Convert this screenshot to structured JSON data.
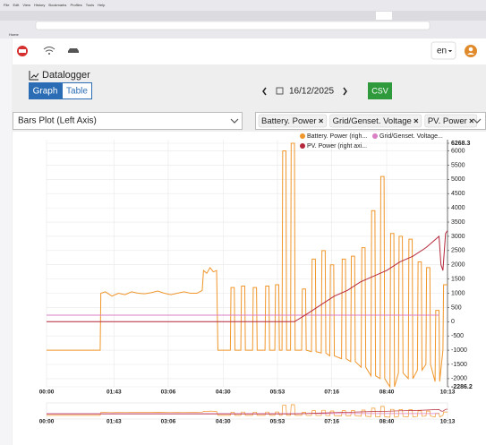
{
  "browser": {
    "menu": [
      "File",
      "Edit",
      "View",
      "History",
      "Bookmarks",
      "Profiles",
      "Tools",
      "Help"
    ],
    "bookmark": "Home"
  },
  "app": {
    "language": "en",
    "page_title": "Datalogger",
    "tabs": [
      "Graph",
      "Table"
    ],
    "date": "16/12/2025",
    "export": "CSV",
    "plot_mode": "Bars Plot (Left Axis)",
    "selected_series": [
      "Battery. Power",
      "Grid/Genset. Voltage",
      "PV. Power"
    ]
  },
  "chart_data": {
    "type": "line",
    "xlim": [
      0,
      613
    ],
    "xticks": [
      {
        "value": 0,
        "label": "00:00"
      },
      {
        "value": 103,
        "label": "01:43"
      },
      {
        "value": 186,
        "label": "03:06"
      },
      {
        "value": 270,
        "label": "04:30"
      },
      {
        "value": 353,
        "label": "05:53"
      },
      {
        "value": 436,
        "label": "07:16"
      },
      {
        "value": 520,
        "label": "08:40"
      },
      {
        "value": 613,
        "label": "10:13"
      }
    ],
    "ylim": [
      -2286.2,
      6268.3
    ],
    "yticks": [
      -2286.2,
      -2000,
      -1500,
      -1000,
      -500,
      0,
      500,
      1000,
      1500,
      2000,
      2500,
      3000,
      3500,
      4000,
      4500,
      5000,
      5500,
      6000,
      6268.3
    ],
    "grid": true,
    "series": [
      {
        "name": "Battery. Power (righ...",
        "color": "#f0962a",
        "x": [
          0,
          82,
          83,
          90,
          100,
          110,
          120,
          130,
          140,
          150,
          160,
          170,
          180,
          190,
          200,
          210,
          220,
          230,
          238,
          240,
          245,
          250,
          255,
          260,
          262,
          281,
          282,
          287,
          288,
          297,
          298,
          303,
          304,
          315,
          316,
          321,
          322,
          334,
          335,
          340,
          341,
          349,
          350,
          355,
          356,
          360,
          361,
          366,
          367,
          373,
          374,
          379,
          380,
          390,
          391,
          396,
          397,
          405,
          406,
          411,
          412,
          420,
          421,
          426,
          427,
          433,
          434,
          439,
          440,
          451,
          452,
          457,
          458,
          465,
          466,
          471,
          472,
          481,
          482,
          487,
          488,
          496,
          497,
          502,
          503,
          510,
          511,
          516,
          517,
          525,
          526,
          531,
          532,
          538,
          539,
          544,
          545,
          553,
          554,
          559,
          560,
          567,
          568,
          573,
          574,
          580,
          581,
          586,
          587,
          594,
          595,
          600,
          601,
          606,
          607,
          613
        ],
        "values": [
          -1000,
          -1000,
          1000,
          1050,
          900,
          1000,
          950,
          1050,
          1000,
          980,
          1020,
          1080,
          1000,
          950,
          1000,
          1050,
          1000,
          1000,
          1100,
          1800,
          1700,
          1900,
          1750,
          1800,
          -1000,
          -1000,
          1200,
          1200,
          -1000,
          -1000,
          1250,
          1250,
          -1000,
          -1000,
          1200,
          1200,
          -1000,
          -1000,
          1250,
          1250,
          -1000,
          -1000,
          1300,
          1300,
          -1000,
          -1000,
          6000,
          6000,
          -1000,
          -1000,
          6268.3,
          6268.3,
          -1000,
          -1000,
          1150,
          1150,
          -1000,
          -1050,
          2200,
          2200,
          -1050,
          -1100,
          2500,
          2500,
          -1100,
          -1200,
          2000,
          2000,
          -1200,
          -1300,
          2200,
          2200,
          -1300,
          -1400,
          2300,
          2300,
          -1400,
          -1600,
          2600,
          2600,
          -1600,
          -1900,
          3900,
          3900,
          -1900,
          -2000,
          5100,
          5100,
          -2000,
          -2286.2,
          3100,
          3100,
          -2286.2,
          -1800,
          3000,
          3000,
          -1800,
          -2000,
          2900,
          2900,
          -2000,
          -1700,
          2100,
          2100,
          -1700,
          -1500,
          1900,
          1900,
          -1500,
          -2100,
          400,
          400,
          -2100,
          -1000,
          1300,
          1300
        ]
      },
      {
        "name": "Grid/Genset. Voltage...",
        "color": "#d97fc4",
        "x": [
          0,
          600
        ],
        "values": [
          230,
          230
        ]
      },
      {
        "name": "PV. Power (right axi...",
        "color": "#b5273a",
        "x": [
          0,
          379,
          400,
          420,
          440,
          460,
          480,
          500,
          520,
          540,
          560,
          580,
          595,
          600,
          603,
          606,
          610,
          613
        ],
        "values": [
          0,
          0,
          300,
          600,
          900,
          1100,
          1400,
          1600,
          1800,
          2100,
          2300,
          2600,
          2900,
          3000,
          2000,
          1800,
          3100,
          3200
        ]
      }
    ]
  }
}
